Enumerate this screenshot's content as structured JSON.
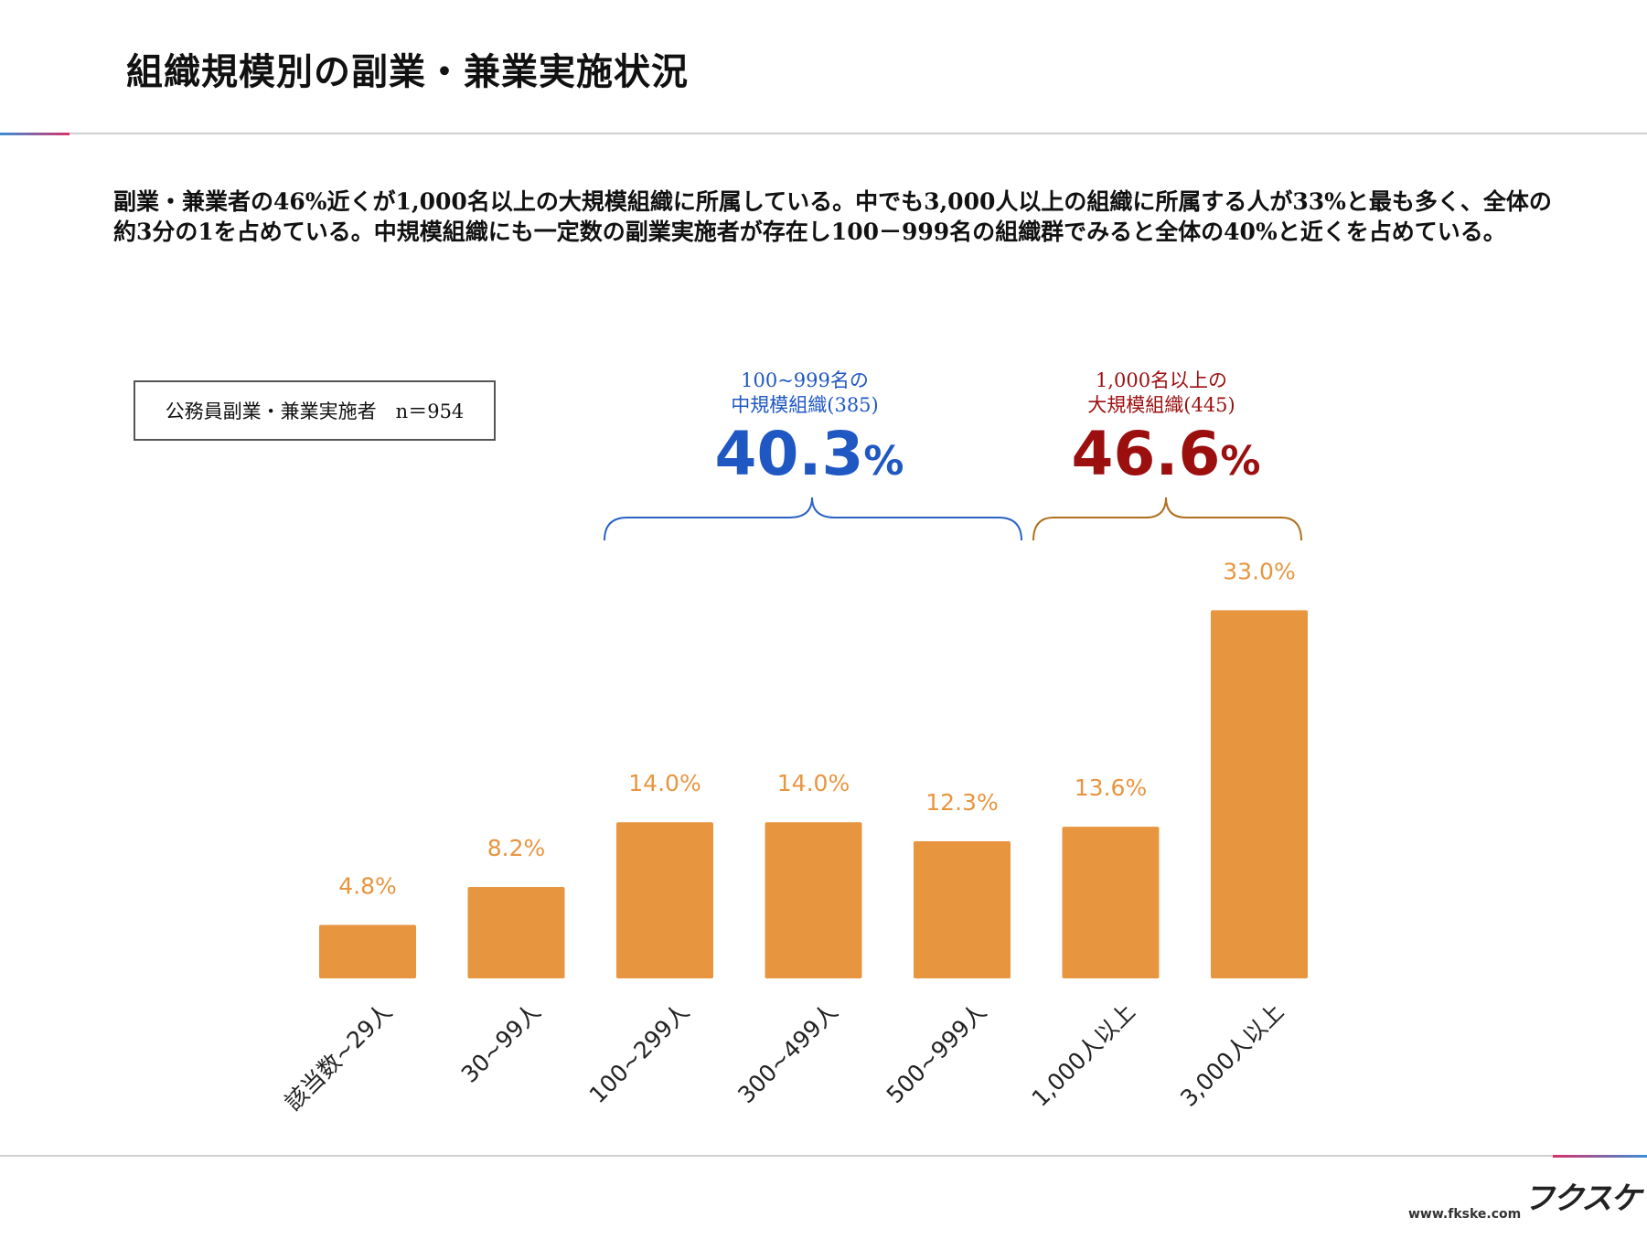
{
  "header": {
    "title": "組織規模別の副業・兼業実施状況"
  },
  "summary": {
    "text": "副業・兼業者の46%近くが1,000名以上の大規模組織に所属している。中でも3,000人以上の組織に所属する人が33%と最も多く、全体の約3分の1を占めている。中規模組織にも一定数の副業実施者が存在し100－999名の組織群でみると全体の40%と近くを占めている。"
  },
  "sample_box": {
    "text": "公務員副業・兼業実施者　n＝954"
  },
  "groups": {
    "mid": {
      "line1": "100~999名の",
      "line2": "中規模組織(385)",
      "pct_number": "40.3",
      "pct_sign": "%",
      "color": "#1f58c2"
    },
    "large": {
      "line1": "1,000名以上の",
      "line2": "大規模組織(445)",
      "pct_number": "46.6",
      "pct_sign": "%",
      "color": "#9c0f0f"
    }
  },
  "chart_data": {
    "type": "bar",
    "title": "",
    "xlabel": "",
    "ylabel": "",
    "ylim": [
      0,
      35
    ],
    "grid": false,
    "bar_color": "#e8953f",
    "label_color": "#e8953f",
    "categories": [
      "該当数~29人",
      "30~99人",
      "100~299人",
      "300~499人",
      "500~999人",
      "1,000人以上",
      "3,000人以上"
    ],
    "values": [
      4.8,
      8.2,
      14.0,
      14.0,
      12.3,
      13.6,
      33.0
    ],
    "value_labels": [
      "4.8%",
      "8.2%",
      "14.0%",
      "14.0%",
      "12.3%",
      "13.6%",
      "33.0%"
    ]
  },
  "footer": {
    "url": "www.fkske.com",
    "logo": "フクスケ"
  }
}
